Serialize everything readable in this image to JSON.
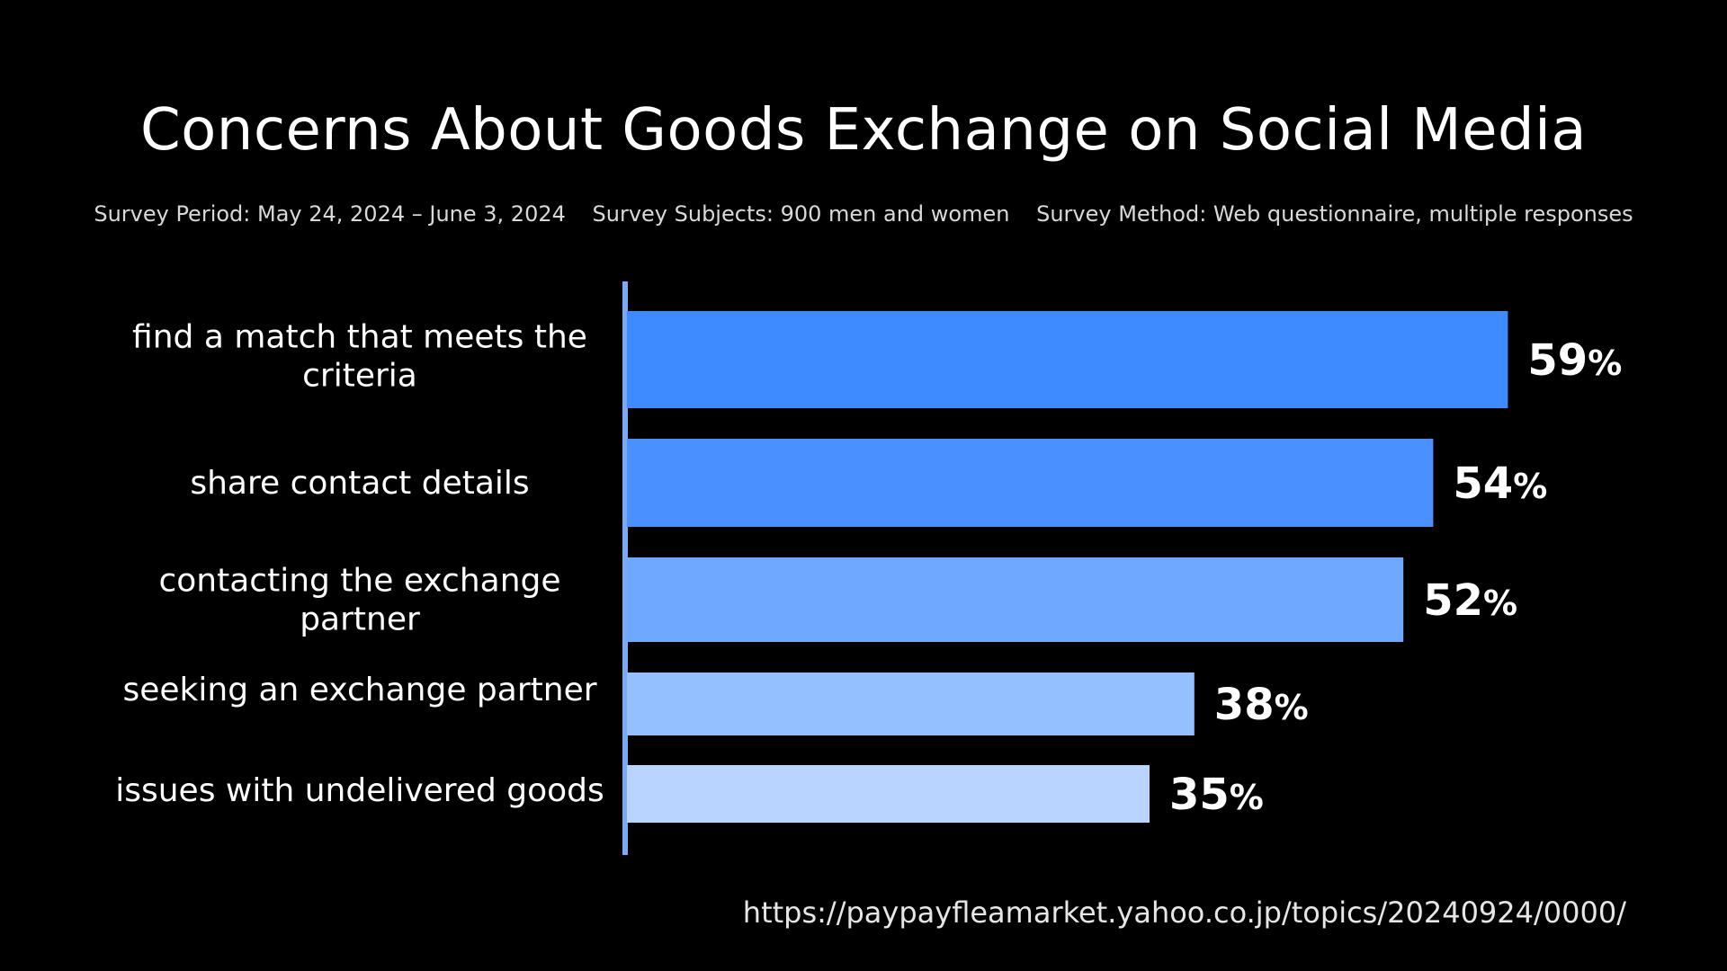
{
  "title": "Concerns About Goods Exchange on Social Media",
  "meta": {
    "period": "Survey Period: May 24, 2024 – June 3, 2024",
    "subjects": "Survey Subjects: 900 men and women",
    "method": "Survey Method: Web questionnaire, multiple responses"
  },
  "source": "https://paypayfleamarket.yahoo.co.jp/topics/20240924/0000/",
  "chart_data": {
    "type": "bar",
    "orientation": "horizontal",
    "categories": [
      [
        "find a match that meets the",
        "criteria"
      ],
      [
        "share contact details"
      ],
      [
        "contacting the exchange",
        "partner"
      ],
      [
        "seeking an exchange partner"
      ],
      [
        "issues with undelivered goods"
      ]
    ],
    "values": [
      59,
      54,
      52,
      38,
      35
    ],
    "value_labels": [
      "59",
      "54",
      "52",
      "38",
      "35"
    ],
    "unit": "%",
    "colors": [
      "#3d8bff",
      "#4a91ff",
      "#6ea8ff",
      "#95c0ff",
      "#b9d5ff"
    ],
    "axis_color": "#7aaaf5",
    "xlim": [
      0,
      100
    ],
    "grid": false,
    "legend": "none"
  }
}
